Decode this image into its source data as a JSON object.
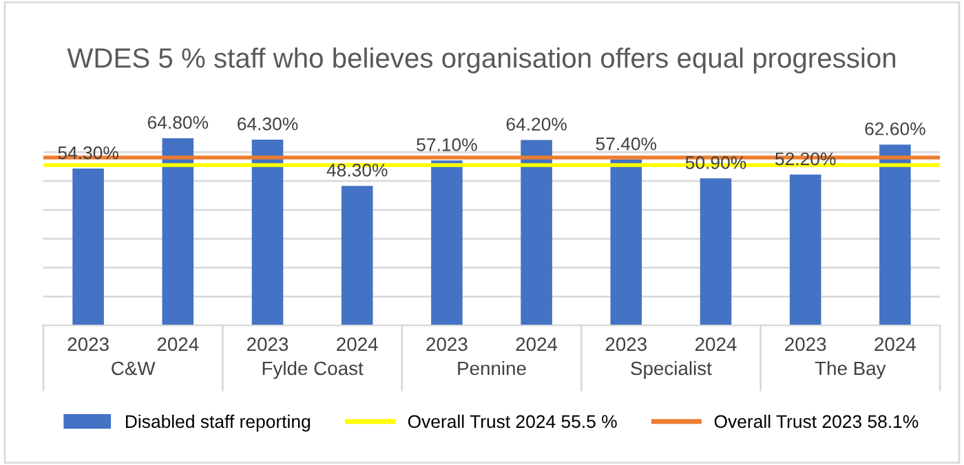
{
  "chart_data": {
    "type": "bar",
    "title": "WDES 5 % staff who believes organisation offers equal progression",
    "categories": [
      "2023",
      "2024",
      "2023",
      "2024",
      "2023",
      "2024",
      "2023",
      "2024",
      "2023",
      "2024"
    ],
    "series": [
      {
        "name": "Disabled staff reporting",
        "color": "#4472c4",
        "values": [
          54.3,
          64.8,
          64.3,
          48.3,
          57.1,
          64.2,
          57.4,
          50.9,
          52.2,
          62.6
        ],
        "value_labels": [
          "54.30%",
          "64.80%",
          "64.30%",
          "48.30%",
          "57.10%",
          "64.20%",
          "57.40%",
          "50.90%",
          "52.20%",
          "62.60%"
        ]
      }
    ],
    "annotations": [
      "C&W",
      "Fylde Coast",
      "Pennine",
      "Specialist",
      "The Bay"
    ],
    "ref_lines": [
      {
        "axis": "y",
        "value": 55.5,
        "label": "Overall Trust 2024 55.5 %",
        "color": "#ffff00"
      },
      {
        "axis": "y",
        "value": 58.1,
        "label": "Overall Trust 2023 58.1%",
        "color": "#ed7d31"
      }
    ],
    "tick_labels": "x",
    "grid": "y",
    "legend": "bottom"
  }
}
